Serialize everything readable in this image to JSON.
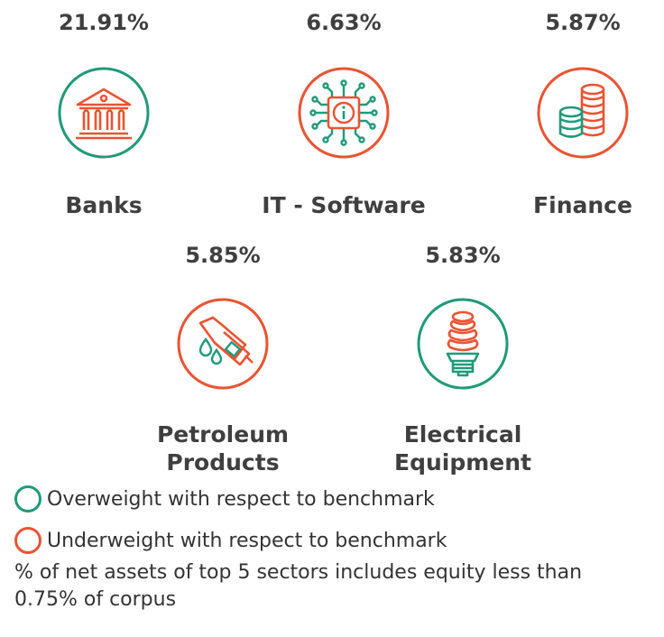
{
  "colors": {
    "overweight": "#1f9a7a",
    "underweight": "#ea5332",
    "text": "#3f3f3f"
  },
  "sectors": [
    {
      "percent": "21.91%",
      "label": "Banks",
      "weight": "overweight",
      "icon": "bank-icon"
    },
    {
      "percent": "6.63%",
      "label": "IT - Software",
      "weight": "underweight",
      "icon": "circuit-chip-icon"
    },
    {
      "percent": "5.87%",
      "label": "Finance",
      "weight": "underweight",
      "icon": "coin-stacks-icon"
    },
    {
      "percent": "5.85%",
      "label_line1": "Petroleum",
      "label_line2": "Products",
      "weight": "underweight",
      "icon": "fuel-nozzle-icon"
    },
    {
      "percent": "5.83%",
      "label_line1": "Electrical",
      "label_line2": "Equipment",
      "weight": "overweight",
      "icon": "light-bulb-icon"
    }
  ],
  "legend": {
    "overweight": "Overweight with respect to benchmark",
    "underweight": "Underweight with respect to benchmark"
  },
  "note": "% of net assets of top 5 sectors includes equity less than 0.75% of corpus"
}
